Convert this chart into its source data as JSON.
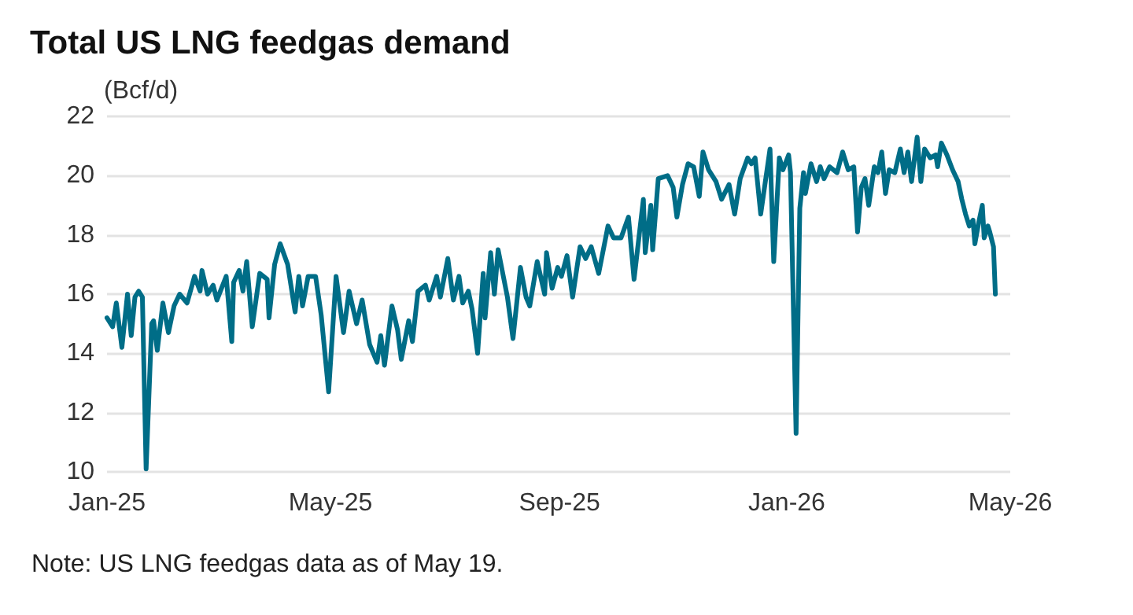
{
  "chart_data": {
    "type": "line",
    "title": "Total US LNG feedgas demand",
    "ylabel": "(Bcf/d)",
    "annotations": [
      "Note: US LNG feedgas data as of May 19."
    ],
    "xlim": [
      "2025-01-01",
      "2026-05-01"
    ],
    "xticks": [
      {
        "value": "2025-01-01",
        "label": "Jan-25"
      },
      {
        "value": "2025-05-01",
        "label": "May-25"
      },
      {
        "value": "2025-09-01",
        "label": "Sep-25"
      },
      {
        "value": "2026-01-01",
        "label": "Jan-26"
      },
      {
        "value": "2026-05-01",
        "label": "May-26"
      }
    ],
    "ylim": [
      10,
      22
    ],
    "yticks": [
      10,
      12,
      14,
      16,
      18,
      20,
      22
    ],
    "grid": "y",
    "line_style": "solid",
    "marker": "none",
    "series": [
      {
        "color": "#006d87",
        "x": [
          "2025-01-01",
          "2025-01-04",
          "2025-01-06",
          "2025-01-09",
          "2025-01-12",
          "2025-01-14",
          "2025-01-16",
          "2025-01-18",
          "2025-01-20",
          "2025-01-22",
          "2025-01-25",
          "2025-01-26",
          "2025-01-28",
          "2025-01-31",
          "2025-02-03",
          "2025-02-06",
          "2025-02-09",
          "2025-02-13",
          "2025-02-17",
          "2025-02-20",
          "2025-02-21",
          "2025-02-24",
          "2025-02-27",
          "2025-03-01",
          "2025-03-06",
          "2025-03-09",
          "2025-03-10",
          "2025-03-13",
          "2025-03-15",
          "2025-03-17",
          "2025-03-20",
          "2025-03-24",
          "2025-03-28",
          "2025-03-29",
          "2025-04-01",
          "2025-04-04",
          "2025-04-08",
          "2025-04-12",
          "2025-04-14",
          "2025-04-16",
          "2025-04-19",
          "2025-04-23",
          "2025-04-26",
          "2025-04-30",
          "2025-05-04",
          "2025-05-08",
          "2025-05-11",
          "2025-05-15",
          "2025-05-18",
          "2025-05-22",
          "2025-05-26",
          "2025-05-28",
          "2025-05-30",
          "2025-06-03",
          "2025-06-06",
          "2025-06-08",
          "2025-06-12",
          "2025-06-14",
          "2025-06-17",
          "2025-06-21",
          "2025-06-23",
          "2025-06-27",
          "2025-06-29",
          "2025-07-03",
          "2025-07-06",
          "2025-07-09",
          "2025-07-11",
          "2025-07-14",
          "2025-07-16",
          "2025-07-19",
          "2025-07-22",
          "2025-07-23",
          "2025-07-26",
          "2025-07-28",
          "2025-07-30",
          "2025-08-04",
          "2025-08-07",
          "2025-08-11",
          "2025-08-14",
          "2025-08-16",
          "2025-08-20",
          "2025-08-24",
          "2025-08-25",
          "2025-08-28",
          "2025-08-31",
          "2025-09-02",
          "2025-09-05",
          "2025-09-08",
          "2025-09-12",
          "2025-09-15",
          "2025-09-18",
          "2025-09-22",
          "2025-09-27",
          "2025-09-30",
          "2025-10-04",
          "2025-10-08",
          "2025-10-11",
          "2025-10-16",
          "2025-10-17",
          "2025-10-20",
          "2025-10-21",
          "2025-10-24",
          "2025-10-29",
          "2025-11-01",
          "2025-11-03",
          "2025-11-06",
          "2025-11-09",
          "2025-11-12",
          "2025-11-15",
          "2025-11-17",
          "2025-11-20",
          "2025-11-24",
          "2025-11-27",
          "2025-12-01",
          "2025-12-04",
          "2025-12-07",
          "2025-12-11",
          "2025-12-13",
          "2025-12-15",
          "2025-12-18",
          "2025-12-23",
          "2025-12-25",
          "2025-12-28",
          "2025-12-30",
          "2026-01-02",
          "2026-01-03",
          "2026-01-06",
          "2026-01-08",
          "2026-01-10",
          "2026-01-11",
          "2026-01-14",
          "2026-01-17",
          "2026-01-19",
          "2026-01-21",
          "2026-01-24",
          "2026-01-28",
          "2026-01-31",
          "2026-02-03",
          "2026-02-06",
          "2026-02-08",
          "2026-02-10",
          "2026-02-12",
          "2026-02-14",
          "2026-02-17",
          "2026-02-19",
          "2026-02-21",
          "2026-02-23",
          "2026-02-25",
          "2026-02-28",
          "2026-03-03",
          "2026-03-05",
          "2026-03-07",
          "2026-03-09",
          "2026-03-12",
          "2026-03-14",
          "2026-03-16",
          "2026-03-19",
          "2026-03-22",
          "2026-03-23",
          "2026-03-25",
          "2026-03-28",
          "2026-03-31",
          "2026-04-03",
          "2026-04-05",
          "2026-04-07",
          "2026-04-09",
          "2026-04-11",
          "2026-04-12",
          "2026-04-14",
          "2026-04-16",
          "2026-04-17",
          "2026-04-19",
          "2026-04-20",
          "2026-04-22",
          "2026-04-23"
        ],
        "values": [
          15.2,
          14.9,
          15.7,
          14.2,
          16.0,
          14.6,
          15.9,
          16.1,
          15.9,
          10.1,
          15.0,
          15.1,
          14.1,
          15.7,
          14.7,
          15.6,
          16.0,
          15.7,
          16.6,
          16.1,
          16.8,
          16.0,
          16.3,
          15.8,
          16.6,
          14.4,
          16.4,
          16.8,
          16.1,
          17.1,
          14.9,
          16.7,
          16.5,
          15.2,
          17.0,
          17.7,
          17.0,
          15.4,
          16.6,
          15.6,
          16.6,
          16.6,
          15.3,
          12.7,
          16.6,
          14.7,
          16.1,
          15.0,
          15.8,
          14.3,
          13.7,
          14.6,
          13.6,
          15.6,
          14.8,
          13.8,
          15.1,
          14.4,
          16.1,
          16.3,
          15.8,
          16.6,
          15.9,
          17.2,
          15.8,
          16.6,
          15.7,
          16.1,
          15.5,
          14.0,
          16.7,
          15.2,
          17.4,
          16.0,
          17.5,
          15.9,
          14.5,
          16.9,
          15.9,
          15.6,
          17.1,
          16.0,
          17.4,
          16.2,
          16.9,
          16.6,
          17.3,
          15.9,
          17.6,
          17.2,
          17.6,
          16.7,
          18.3,
          17.9,
          17.9,
          18.6,
          16.5,
          19.2,
          17.4,
          19.0,
          17.5,
          19.9,
          20.0,
          19.6,
          18.6,
          19.7,
          20.4,
          20.3,
          19.3,
          20.8,
          20.2,
          19.8,
          19.2,
          19.7,
          18.7,
          19.9,
          20.6,
          20.4,
          20.6,
          18.7,
          20.9,
          17.1,
          20.6,
          20.2,
          20.7,
          20.1,
          11.3,
          18.9,
          20.1,
          19.4,
          20.4,
          19.8,
          20.3,
          19.9,
          20.3,
          20.1,
          20.8,
          20.2,
          20.3,
          18.1,
          19.6,
          19.9,
          19.0,
          20.3,
          20.1,
          20.8,
          19.4,
          20.2,
          20.1,
          20.9,
          20.1,
          20.8,
          19.8,
          21.3,
          19.8,
          20.9,
          20.6,
          20.7,
          20.3,
          21.1,
          20.7,
          20.2,
          19.8,
          19.2,
          18.7,
          18.3,
          18.5,
          17.7,
          18.4,
          19.0,
          17.9,
          18.3,
          18.1,
          17.6,
          16.0
        ]
      }
    ]
  }
}
